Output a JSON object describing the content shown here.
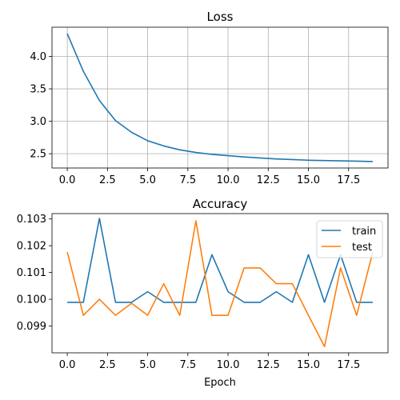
{
  "colors": {
    "train": "#1f77b4",
    "test": "#ff7f0e"
  },
  "chart_data": [
    {
      "type": "line",
      "title": "Loss",
      "xlabel": "",
      "ylabel": "",
      "x": [
        0,
        1,
        2,
        3,
        4,
        5,
        6,
        7,
        8,
        9,
        10,
        11,
        12,
        13,
        14,
        15,
        16,
        17,
        18,
        19
      ],
      "series": [
        {
          "values": [
            4.35,
            3.77,
            3.32,
            3.01,
            2.83,
            2.7,
            2.62,
            2.56,
            2.52,
            2.49,
            2.47,
            2.45,
            2.435,
            2.42,
            2.41,
            2.4,
            2.395,
            2.39,
            2.385,
            2.38
          ]
        }
      ],
      "xlim": [
        -0.95,
        19.95
      ],
      "ylim": [
        2.28,
        4.45
      ],
      "xticks": [
        0,
        2.5,
        5,
        7.5,
        10,
        12.5,
        15,
        17.5
      ],
      "xtick_labels": [
        "0.0",
        "2.5",
        "5.0",
        "7.5",
        "10.0",
        "12.5",
        "15.0",
        "17.5"
      ],
      "yticks": [
        2.5,
        3.0,
        3.5,
        4.0
      ],
      "ytick_labels": [
        "2.5",
        "3.0",
        "3.5",
        "4.0"
      ],
      "grid": true
    },
    {
      "type": "line",
      "title": "Accuracy",
      "xlabel": "Epoch",
      "ylabel": "",
      "x": [
        0,
        1,
        2,
        3,
        4,
        5,
        6,
        7,
        8,
        9,
        10,
        11,
        12,
        13,
        14,
        15,
        16,
        17,
        18,
        19
      ],
      "series": [
        {
          "name": "train",
          "values": [
            0.099886,
            0.099886,
            0.103023,
            0.099886,
            0.099886,
            0.100283,
            0.099886,
            0.099886,
            0.099886,
            0.101665,
            0.100283,
            0.099886,
            0.099886,
            0.100283,
            0.099886,
            0.101665,
            0.099886,
            0.101665,
            0.099886,
            0.099886
          ]
        },
        {
          "name": "test",
          "values": [
            0.10176,
            0.0994,
            0.1,
            0.0994,
            0.09985,
            0.0994,
            0.100583,
            0.0994,
            0.10293,
            0.0994,
            0.0994,
            0.10117,
            0.10117,
            0.100583,
            0.100583,
            0.0994,
            0.09823,
            0.10117,
            0.0994,
            0.10176
          ]
        }
      ],
      "xlim": [
        -0.95,
        19.95
      ],
      "ylim": [
        0.098,
        0.1032
      ],
      "xticks": [
        0,
        2.5,
        5,
        7.5,
        10,
        12.5,
        15,
        17.5
      ],
      "xtick_labels": [
        "0.0",
        "2.5",
        "5.0",
        "7.5",
        "10.0",
        "12.5",
        "15.0",
        "17.5"
      ],
      "yticks": [
        0.099,
        0.1,
        0.101,
        0.102,
        0.103
      ],
      "ytick_labels": [
        "0.099",
        "0.100",
        "0.101",
        "0.102",
        "0.103"
      ],
      "grid": false,
      "legend": {
        "placement": "upper right",
        "entries": [
          "train",
          "test"
        ]
      }
    }
  ]
}
